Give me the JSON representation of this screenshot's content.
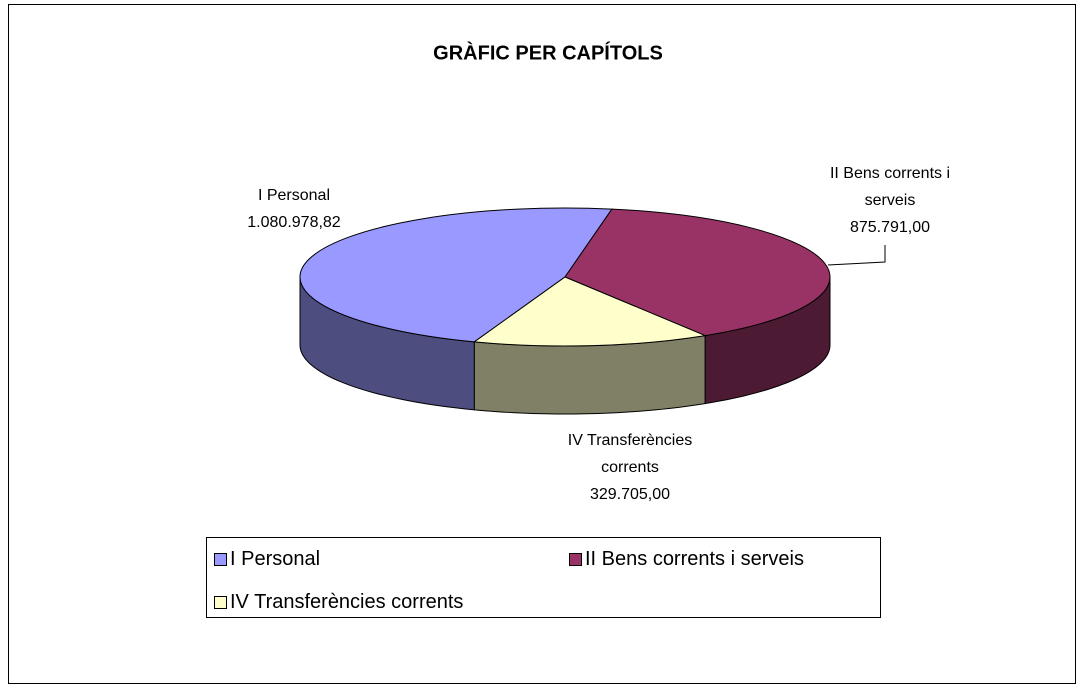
{
  "chart_data": {
    "type": "pie3d",
    "title": "GRÀFIC PER CAPÍTOLS",
    "categories": [
      "I Personal",
      "II Bens corrents i serveis",
      "IV Transferències corrents"
    ],
    "values": [
      1080978.82,
      875791.0,
      329705.0
    ],
    "value_labels": [
      "1.080.978,82",
      "875.791,00",
      "329.705,00"
    ],
    "colors": [
      "#9999ff",
      "#993366",
      "#ffffcc"
    ],
    "legend": "bottom"
  }
}
